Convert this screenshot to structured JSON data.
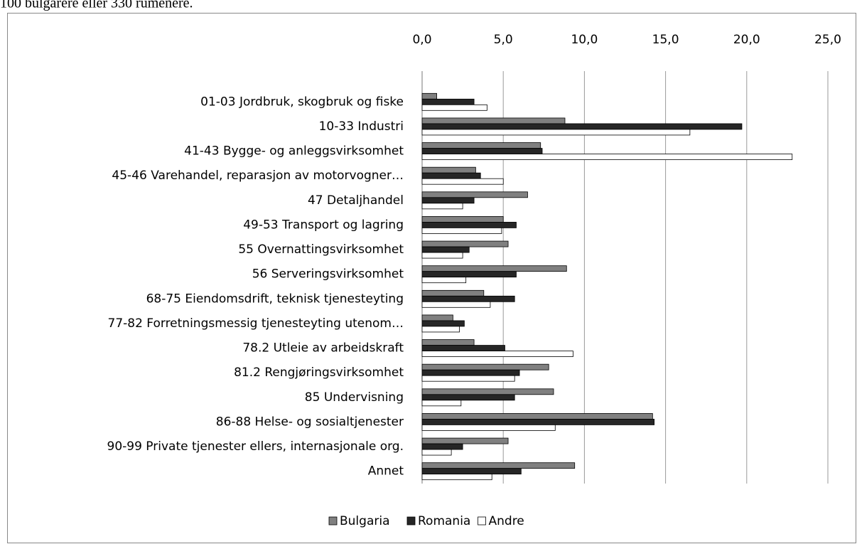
{
  "caption": "100 bulgarere eller 330 rumenere.",
  "chart_data": {
    "type": "hbar",
    "categories": [
      "01-03 Jordbruk, skogbruk og fiske",
      "10-33 Industri",
      "41-43 Bygge- og anleggsvirksomhet",
      "45-46 Varehandel, reparasjon av motorvogner…",
      "47 Detaljhandel",
      "49-53 Transport og lagring",
      "55 Overnattingsvirksomhet",
      "56 Serveringsvirksomhet",
      "68-75 Eiendomsdrift, teknisk tjenesteyting",
      "77-82 Forretningsmessig tjenesteyting utenom…",
      "78.2 Utleie av arbeidskraft",
      "81.2 Rengjøringsvirksomhet",
      "85 Undervisning",
      "86-88 Helse- og sosialtjenester",
      "90-99 Private tjenester ellers, internasjonale org.",
      "Annet"
    ],
    "series": [
      {
        "name": "Bulgaria",
        "color": "#808080",
        "values": [
          0.9,
          8.8,
          7.3,
          3.3,
          6.5,
          5.0,
          5.3,
          8.9,
          3.8,
          1.9,
          3.2,
          7.8,
          8.1,
          14.2,
          5.3,
          9.4
        ]
      },
      {
        "name": "Romania",
        "color": "#262626",
        "values": [
          3.2,
          19.7,
          7.4,
          3.6,
          3.2,
          5.8,
          2.9,
          5.8,
          5.7,
          2.6,
          5.1,
          6.0,
          5.7,
          14.3,
          2.5,
          6.1
        ]
      },
      {
        "name": "Andre",
        "color": "#ffffff",
        "values": [
          4.0,
          16.5,
          22.8,
          5.0,
          2.5,
          4.9,
          2.5,
          2.7,
          4.2,
          2.3,
          9.3,
          5.7,
          2.4,
          8.2,
          1.8,
          4.3
        ]
      }
    ],
    "xlim": [
      0,
      25
    ],
    "xticks": [
      {
        "value": 0,
        "label": "0,0"
      },
      {
        "value": 5,
        "label": "5,0"
      },
      {
        "value": 10,
        "label": "10,0"
      },
      {
        "value": 15,
        "label": "15,0"
      },
      {
        "value": 20,
        "label": "20,0"
      },
      {
        "value": 25,
        "label": "25,0"
      }
    ],
    "grid": true,
    "legend": "bottom"
  }
}
